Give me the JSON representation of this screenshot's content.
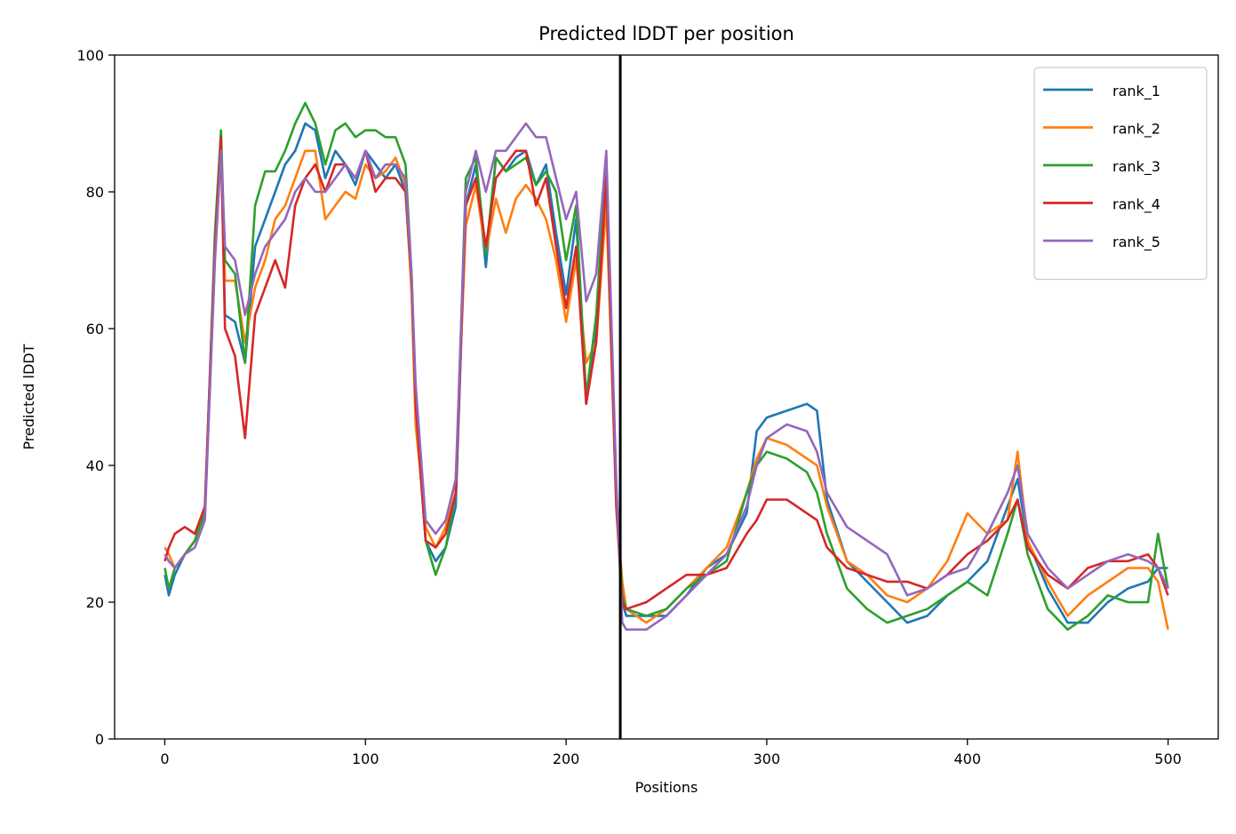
{
  "chart_data": {
    "type": "line",
    "title": "Predicted lDDT per position",
    "xlabel": "Positions",
    "ylabel": "Predicted lDDT",
    "xlim": [
      -25,
      525
    ],
    "ylim": [
      0,
      100
    ],
    "xticks": [
      0,
      100,
      200,
      300,
      400,
      500
    ],
    "yticks": [
      0,
      20,
      40,
      60,
      80,
      100
    ],
    "grid": false,
    "legend": "top-right",
    "separator_x": 227,
    "x": [
      0,
      2,
      5,
      10,
      15,
      20,
      25,
      28,
      30,
      35,
      40,
      45,
      50,
      55,
      60,
      65,
      70,
      75,
      80,
      85,
      90,
      95,
      100,
      105,
      110,
      115,
      120,
      123,
      125,
      130,
      135,
      140,
      145,
      150,
      155,
      160,
      165,
      170,
      175,
      180,
      185,
      190,
      195,
      200,
      205,
      210,
      215,
      220,
      225,
      228,
      230,
      240,
      250,
      260,
      270,
      280,
      290,
      295,
      300,
      310,
      320,
      325,
      330,
      340,
      350,
      360,
      370,
      380,
      390,
      400,
      410,
      420,
      425,
      430,
      440,
      450,
      460,
      470,
      480,
      490,
      495,
      500
    ],
    "series": [
      {
        "name": "rank_1",
        "color": "#1f77b4",
        "values": [
          24,
          21,
          24,
          27,
          29,
          34,
          72,
          87,
          62,
          61,
          55,
          72,
          76,
          80,
          84,
          86,
          90,
          89,
          82,
          86,
          84,
          81,
          86,
          84,
          82,
          84,
          80,
          66,
          48,
          29,
          26,
          28,
          34,
          78,
          84,
          69,
          85,
          83,
          85,
          86,
          81,
          84,
          74,
          65,
          76,
          49,
          60,
          82,
          36,
          20,
          18,
          18,
          18,
          21,
          25,
          27,
          33,
          45,
          47,
          48,
          49,
          48,
          35,
          26,
          23,
          20,
          17,
          18,
          21,
          23,
          26,
          34,
          38,
          29,
          22,
          17,
          17,
          20,
          22,
          23,
          25,
          25
        ]
      },
      {
        "name": "rank_2",
        "color": "#ff7f0e",
        "values": [
          28,
          27,
          25,
          27,
          29,
          33,
          70,
          86,
          67,
          67,
          58,
          66,
          70,
          76,
          78,
          82,
          86,
          86,
          76,
          78,
          80,
          79,
          84,
          82,
          83,
          85,
          81,
          65,
          46,
          31,
          28,
          31,
          38,
          75,
          81,
          71,
          79,
          74,
          79,
          81,
          79,
          76,
          70,
          61,
          70,
          55,
          58,
          78,
          35,
          23,
          19,
          17,
          19,
          22,
          25,
          28,
          36,
          41,
          44,
          43,
          41,
          40,
          34,
          26,
          24,
          21,
          20,
          22,
          26,
          33,
          30,
          32,
          42,
          29,
          23,
          18,
          21,
          23,
          25,
          25,
          23,
          16
        ]
      },
      {
        "name": "rank_3",
        "color": "#2ca02c",
        "values": [
          25,
          22,
          25,
          27,
          29,
          33,
          74,
          89,
          70,
          68,
          55,
          78,
          83,
          83,
          86,
          90,
          93,
          90,
          84,
          89,
          90,
          88,
          89,
          89,
          88,
          88,
          84,
          68,
          50,
          29,
          24,
          28,
          36,
          82,
          85,
          71,
          85,
          83,
          84,
          85,
          81,
          83,
          80,
          70,
          78,
          50,
          62,
          85,
          37,
          21,
          19,
          18,
          19,
          22,
          24,
          26,
          36,
          40,
          42,
          41,
          39,
          36,
          30,
          22,
          19,
          17,
          18,
          19,
          21,
          23,
          21,
          30,
          35,
          27,
          19,
          16,
          18,
          21,
          20,
          20,
          30,
          22
        ]
      },
      {
        "name": "rank_4",
        "color": "#d62728",
        "values": [
          26,
          28,
          30,
          31,
          30,
          34,
          72,
          88,
          60,
          56,
          44,
          62,
          66,
          70,
          66,
          78,
          82,
          84,
          80,
          84,
          84,
          82,
          86,
          80,
          82,
          82,
          80,
          67,
          49,
          29,
          28,
          30,
          36,
          78,
          82,
          72,
          82,
          84,
          86,
          86,
          78,
          82,
          72,
          63,
          72,
          49,
          58,
          82,
          34,
          20,
          19,
          20,
          22,
          24,
          24,
          25,
          30,
          32,
          35,
          35,
          33,
          32,
          28,
          25,
          24,
          23,
          23,
          22,
          24,
          27,
          29,
          32,
          35,
          28,
          24,
          22,
          25,
          26,
          26,
          27,
          25,
          21
        ]
      },
      {
        "name": "rank_5",
        "color": "#9467bd",
        "values": [
          27,
          26,
          25,
          27,
          28,
          32,
          70,
          86,
          72,
          70,
          62,
          68,
          72,
          74,
          76,
          80,
          82,
          80,
          80,
          82,
          84,
          82,
          86,
          82,
          84,
          84,
          82,
          68,
          52,
          32,
          30,
          32,
          38,
          80,
          86,
          80,
          86,
          86,
          88,
          90,
          88,
          88,
          82,
          76,
          80,
          64,
          68,
          86,
          38,
          17,
          16,
          16,
          18,
          21,
          24,
          27,
          34,
          40,
          44,
          46,
          45,
          42,
          36,
          31,
          29,
          27,
          21,
          22,
          24,
          25,
          30,
          36,
          40,
          30,
          25,
          22,
          24,
          26,
          27,
          26,
          25,
          22
        ]
      }
    ]
  }
}
